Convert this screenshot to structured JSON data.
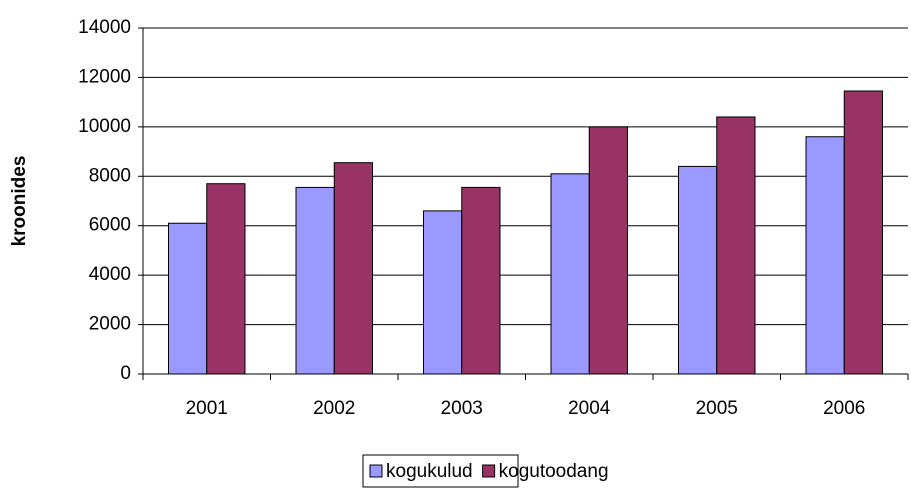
{
  "chart_data": {
    "type": "bar",
    "y_label": "kroonides",
    "categories": [
      "2001",
      "2002",
      "2003",
      "2004",
      "2005",
      "2006"
    ],
    "series": [
      {
        "name": "kogukulud",
        "color": "#9999ff",
        "values": [
          6100,
          7550,
          6600,
          8100,
          8400,
          9600
        ]
      },
      {
        "name": "kogutoodang",
        "color": "#993366",
        "values": [
          7700,
          8550,
          7550,
          10000,
          10400,
          11450
        ]
      }
    ],
    "ylim": [
      0,
      14000
    ],
    "yticks": [
      0,
      2000,
      4000,
      6000,
      8000,
      10000,
      12000,
      14000
    ],
    "grid": true
  }
}
